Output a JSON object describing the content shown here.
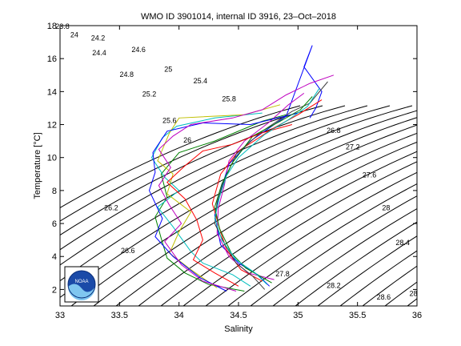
{
  "chart_data": {
    "type": "line",
    "title": "WMO ID 3901014, internal ID 3916, 23–Oct–2018",
    "xlabel": "Salinity",
    "ylabel": "Temperature [°C]",
    "xlim": [
      33,
      36
    ],
    "ylim": [
      1,
      18
    ],
    "xticks": [
      "33",
      "33.5",
      "34",
      "34.5",
      "35",
      "35.5",
      "36"
    ],
    "yticks": [
      "2",
      "4",
      "6",
      "8",
      "10",
      "12",
      "14",
      "16",
      "18"
    ],
    "grid": false,
    "logo_text": "NOAA",
    "density_contours": [
      {
        "label": "23.8",
        "s": 33.02,
        "t": 17.8
      },
      {
        "label": "24",
        "s": 33.12,
        "t": 17.3
      },
      {
        "label": "24.2",
        "s": 33.32,
        "t": 17.1
      },
      {
        "label": "24.4",
        "s": 33.33,
        "t": 16.2
      },
      {
        "label": "24.6",
        "s": 33.66,
        "t": 16.4
      },
      {
        "label": "24.8",
        "s": 33.56,
        "t": 14.9
      },
      {
        "label": "25",
        "s": 33.91,
        "t": 15.2
      },
      {
        "label": "25.2",
        "s": 33.75,
        "t": 13.7
      },
      {
        "label": "25.4",
        "s": 34.18,
        "t": 14.5
      },
      {
        "label": "25.6",
        "s": 33.92,
        "t": 12.1
      },
      {
        "label": "25.8",
        "s": 34.42,
        "t": 13.4
      },
      {
        "label": "26",
        "s": 34.07,
        "t": 10.9
      },
      {
        "label": "26.8",
        "s": 35.3,
        "t": 11.5
      },
      {
        "label": "27.2",
        "s": 35.46,
        "t": 10.5
      },
      {
        "label": "27.6",
        "s": 35.6,
        "t": 8.8
      },
      {
        "label": "28",
        "s": 35.74,
        "t": 6.8
      },
      {
        "label": "28.4",
        "s": 35.88,
        "t": 4.7
      },
      {
        "label": "26.2",
        "s": 33.43,
        "t": 6.8
      },
      {
        "label": "26.6",
        "s": 33.57,
        "t": 4.2
      },
      {
        "label": "27.8",
        "s": 34.87,
        "t": 2.8
      },
      {
        "label": "28.2",
        "s": 35.3,
        "t": 2.1
      },
      {
        "label": "28.6",
        "s": 35.72,
        "t": 1.4
      },
      {
        "label": "28",
        "s": 35.97,
        "t": 1.6
      }
    ],
    "series_colors": [
      "#0000ff",
      "#008000",
      "#ff0000",
      "#00bfbf",
      "#bf00bf",
      "#bfbf00",
      "#404040"
    ],
    "series": [
      {
        "points": [
          [
            35.1,
            12.4
          ],
          [
            35.15,
            13.0
          ],
          [
            35.2,
            14.0
          ],
          [
            35.05,
            15.5
          ],
          [
            35.12,
            16.8
          ],
          [
            34.9,
            12.5
          ],
          [
            34.6,
            11.0
          ],
          [
            34.42,
            9.6
          ],
          [
            34.35,
            8.0
          ],
          [
            34.3,
            6.5
          ],
          [
            34.35,
            4.7
          ],
          [
            34.5,
            3.6
          ],
          [
            34.66,
            2.9
          ],
          [
            34.76,
            2.2
          ]
        ]
      },
      {
        "points": [
          [
            34.9,
            12.6
          ],
          [
            34.7,
            12.2
          ],
          [
            34.3,
            11.0
          ],
          [
            34.0,
            10.3
          ],
          [
            33.85,
            9.0
          ],
          [
            33.9,
            7.6
          ],
          [
            33.8,
            6.4
          ],
          [
            33.85,
            5.1
          ],
          [
            33.9,
            3.9
          ],
          [
            34.05,
            3.0
          ],
          [
            34.25,
            2.3
          ],
          [
            34.55,
            1.9
          ]
        ]
      },
      {
        "points": [
          [
            35.2,
            13.5
          ],
          [
            35.0,
            12.6
          ],
          [
            34.8,
            11.8
          ],
          [
            34.5,
            10.4
          ],
          [
            34.35,
            9.0
          ],
          [
            34.28,
            7.2
          ],
          [
            34.35,
            5.5
          ],
          [
            34.4,
            4.4
          ],
          [
            34.52,
            3.2
          ],
          [
            34.7,
            2.5
          ]
        ]
      },
      {
        "points": [
          [
            34.7,
            12.7
          ],
          [
            34.3,
            12.4
          ],
          [
            33.98,
            11.9
          ],
          [
            33.86,
            11.2
          ],
          [
            33.77,
            10.0
          ],
          [
            33.88,
            8.8
          ],
          [
            34.0,
            8.0
          ],
          [
            33.82,
            7.0
          ],
          [
            33.95,
            5.8
          ],
          [
            34.1,
            4.3
          ],
          [
            34.2,
            3.6
          ],
          [
            34.45,
            2.9
          ],
          [
            34.6,
            2.2
          ]
        ]
      },
      {
        "points": [
          [
            35.05,
            13.9
          ],
          [
            34.92,
            13.2
          ],
          [
            34.75,
            12.1
          ],
          [
            34.55,
            11.0
          ],
          [
            34.42,
            9.8
          ],
          [
            34.38,
            8.3
          ],
          [
            34.33,
            6.9
          ],
          [
            34.32,
            5.4
          ],
          [
            34.42,
            4.0
          ],
          [
            34.58,
            3.0
          ],
          [
            34.8,
            2.6
          ]
        ]
      },
      {
        "points": [
          [
            34.85,
            13.2
          ],
          [
            34.55,
            12.6
          ],
          [
            34.0,
            12.4
          ],
          [
            33.92,
            11.5
          ],
          [
            33.82,
            9.8
          ],
          [
            33.95,
            9.0
          ],
          [
            33.9,
            7.8
          ],
          [
            34.1,
            6.7
          ],
          [
            34.0,
            5.5
          ],
          [
            33.92,
            4.2
          ],
          [
            34.1,
            3.2
          ],
          [
            34.32,
            2.1
          ]
        ]
      },
      {
        "points": [
          [
            35.25,
            14.6
          ],
          [
            35.1,
            13.3
          ],
          [
            34.95,
            12.8
          ],
          [
            34.7,
            11.6
          ],
          [
            34.48,
            10.2
          ],
          [
            34.38,
            8.6
          ],
          [
            34.32,
            7.3
          ],
          [
            34.3,
            6.0
          ],
          [
            34.38,
            4.8
          ],
          [
            34.48,
            3.6
          ],
          [
            34.62,
            2.8
          ],
          [
            34.72,
            2.0
          ]
        ]
      },
      {
        "points": [
          [
            35.0,
            12.7
          ],
          [
            34.6,
            12.0
          ],
          [
            34.2,
            12.1
          ],
          [
            33.9,
            11.6
          ],
          [
            33.78,
            10.3
          ],
          [
            33.8,
            9.1
          ],
          [
            33.75,
            8.0
          ],
          [
            33.86,
            6.3
          ],
          [
            33.8,
            5.2
          ],
          [
            33.95,
            4.0
          ],
          [
            34.18,
            2.7
          ],
          [
            34.4,
            1.9
          ]
        ]
      },
      {
        "points": [
          [
            35.12,
            13.7
          ],
          [
            35.02,
            12.9
          ],
          [
            34.85,
            12.2
          ],
          [
            34.62,
            11.3
          ],
          [
            34.45,
            9.7
          ],
          [
            34.36,
            8.4
          ],
          [
            34.3,
            7.0
          ],
          [
            34.34,
            5.7
          ],
          [
            34.44,
            4.2
          ],
          [
            34.56,
            3.3
          ],
          [
            34.78,
            2.4
          ]
        ]
      },
      {
        "points": [
          [
            34.95,
            12.0
          ],
          [
            34.7,
            11.5
          ],
          [
            34.45,
            10.8
          ],
          [
            34.2,
            10.4
          ],
          [
            34.05,
            9.5
          ],
          [
            33.9,
            8.5
          ],
          [
            34.05,
            7.5
          ],
          [
            34.15,
            6.2
          ],
          [
            34.2,
            5.0
          ],
          [
            34.12,
            3.8
          ],
          [
            34.3,
            3.0
          ],
          [
            34.5,
            2.2
          ]
        ]
      },
      {
        "points": [
          [
            35.18,
            14.2
          ],
          [
            35.08,
            13.1
          ],
          [
            34.92,
            12.3
          ],
          [
            34.72,
            11.4
          ],
          [
            34.5,
            10.0
          ],
          [
            34.4,
            8.9
          ],
          [
            34.34,
            7.6
          ],
          [
            34.3,
            6.3
          ],
          [
            34.36,
            5.0
          ],
          [
            34.48,
            3.8
          ],
          [
            34.64,
            3.0
          ],
          [
            34.74,
            2.3
          ]
        ]
      },
      {
        "points": [
          [
            35.3,
            15.0
          ],
          [
            35.1,
            14.5
          ],
          [
            34.9,
            13.8
          ],
          [
            34.7,
            12.9
          ],
          [
            34.45,
            12.4
          ],
          [
            34.1,
            12.0
          ],
          [
            33.95,
            11.3
          ],
          [
            33.83,
            10.5
          ],
          [
            33.93,
            9.4
          ],
          [
            33.83,
            8.3
          ],
          [
            33.92,
            7.1
          ],
          [
            34.02,
            6.0
          ],
          [
            33.88,
            4.9
          ],
          [
            34.02,
            3.5
          ],
          [
            34.2,
            2.5
          ],
          [
            34.48,
            1.9
          ]
        ]
      }
    ]
  }
}
